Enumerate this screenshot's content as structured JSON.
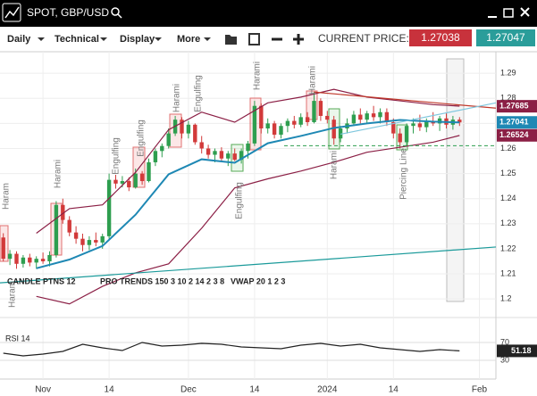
{
  "header": {
    "title": "SPOT, GBP/USD"
  },
  "toolbar": {
    "menus": [
      "Daily",
      "Technical",
      "Display",
      "More"
    ],
    "current_price_label": "CURRENT PRICE:",
    "bid": "1.27038",
    "ask": "1.27047"
  },
  "chart_data": [
    {
      "type": "candlestick",
      "up_color": "#2e9e4f",
      "down_color": "#d23a3a",
      "open": [
        1.2245,
        1.216,
        1.218,
        1.214,
        1.2165,
        1.2145,
        1.216,
        1.215,
        1.2175,
        1.2375,
        1.2315,
        1.2265,
        1.224,
        1.2215,
        1.2235,
        1.2225,
        1.225,
        1.2475,
        1.246,
        1.247,
        1.2445,
        1.25,
        1.247,
        1.2545,
        1.259,
        1.261,
        1.266,
        1.2715,
        1.266,
        1.2695,
        1.2625,
        1.26,
        1.2575,
        1.259,
        1.256,
        1.258,
        1.2555,
        1.259,
        1.262,
        1.277,
        1.268,
        1.27,
        1.2655,
        1.269,
        1.271,
        1.2695,
        1.2725,
        1.2705,
        1.279,
        1.273,
        1.2715,
        1.264,
        1.268,
        1.27,
        1.2735,
        1.2715,
        1.274,
        1.2725,
        1.2745,
        1.2705,
        1.266,
        1.2625,
        1.269,
        1.27,
        1.2685,
        1.271,
        1.27,
        1.272,
        1.2695,
        1.2715
      ],
      "high": [
        1.2262,
        1.2195,
        1.219,
        1.2175,
        1.218,
        1.217,
        1.2185,
        1.219,
        1.239,
        1.24,
        1.233,
        1.229,
        1.226,
        1.225,
        1.2265,
        1.226,
        1.25,
        1.2495,
        1.249,
        1.2485,
        1.252,
        1.251,
        1.256,
        1.26,
        1.262,
        1.268,
        1.273,
        1.2725,
        1.271,
        1.27,
        1.265,
        1.2615,
        1.26,
        1.2605,
        1.259,
        1.26,
        1.26,
        1.263,
        1.279,
        1.278,
        1.272,
        1.271,
        1.27,
        1.272,
        1.273,
        1.274,
        1.2745,
        1.2825,
        1.28,
        1.275,
        1.273,
        1.269,
        1.272,
        1.275,
        1.276,
        1.275,
        1.277,
        1.276,
        1.276,
        1.272,
        1.268,
        1.27,
        1.272,
        1.2735,
        1.272,
        1.2745,
        1.273,
        1.274,
        1.273,
        1.2725
      ],
      "low": [
        1.215,
        1.2135,
        1.212,
        1.2125,
        1.213,
        1.212,
        1.214,
        1.213,
        1.2165,
        1.23,
        1.225,
        1.222,
        1.219,
        1.2195,
        1.221,
        1.22,
        1.224,
        1.244,
        1.2445,
        1.243,
        1.244,
        1.2455,
        1.2465,
        1.253,
        1.2565,
        1.26,
        1.265,
        1.264,
        1.264,
        1.2615,
        1.258,
        1.256,
        1.2545,
        1.255,
        1.253,
        1.255,
        1.254,
        1.256,
        1.261,
        1.266,
        1.266,
        1.264,
        1.264,
        1.2665,
        1.268,
        1.2685,
        1.269,
        1.27,
        1.271,
        1.27,
        1.2615,
        1.2625,
        1.266,
        1.269,
        1.27,
        1.27,
        1.271,
        1.27,
        1.269,
        1.264,
        1.26,
        1.261,
        1.266,
        1.267,
        1.2665,
        1.269,
        1.267,
        1.268,
        1.2675,
        1.269
      ],
      "close": [
        1.216,
        1.218,
        1.214,
        1.2165,
        1.2145,
        1.216,
        1.215,
        1.2175,
        1.2375,
        1.2315,
        1.2265,
        1.224,
        1.2215,
        1.2235,
        1.2225,
        1.225,
        1.2475,
        1.246,
        1.247,
        1.2445,
        1.25,
        1.247,
        1.2545,
        1.259,
        1.261,
        1.266,
        1.2715,
        1.266,
        1.2695,
        1.2625,
        1.26,
        1.2575,
        1.259,
        1.256,
        1.258,
        1.2555,
        1.259,
        1.262,
        1.277,
        1.268,
        1.27,
        1.2655,
        1.269,
        1.271,
        1.2695,
        1.2725,
        1.2705,
        1.279,
        1.273,
        1.2715,
        1.264,
        1.268,
        1.27,
        1.2735,
        1.2715,
        1.274,
        1.2725,
        1.2745,
        1.2705,
        1.266,
        1.2625,
        1.269,
        1.27,
        1.2685,
        1.271,
        1.27,
        1.272,
        1.2695,
        1.2715,
        1.2704
      ],
      "xlim": [
        -0.5,
        74.5
      ],
      "xticks": [
        {
          "value": 6,
          "label": "Nov"
        },
        {
          "value": 16,
          "label": "14"
        },
        {
          "value": 28,
          "label": "Dec"
        },
        {
          "value": 38,
          "label": "14"
        },
        {
          "value": 49,
          "label": "2024"
        },
        {
          "value": 59,
          "label": "14"
        },
        {
          "value": 72,
          "label": "Feb"
        }
      ],
      "ylim": [
        1.194,
        1.2986
      ],
      "yticks": [
        1.2,
        1.21,
        1.22,
        1.23,
        1.24,
        1.25,
        1.26,
        1.27,
        1.28,
        1.29
      ],
      "grid": true,
      "bands": [
        {
          "color": "#8b1f45",
          "x": [
            5,
            10,
            15,
            20,
            25,
            30,
            35,
            40,
            45,
            50,
            55,
            60,
            65,
            69
          ],
          "values": [
            1.2262,
            1.236,
            1.2375,
            1.2505,
            1.2675,
            1.2745,
            1.2705,
            1.2782,
            1.2805,
            1.2836,
            1.2805,
            1.279,
            1.2775,
            1.2769
          ]
        },
        {
          "color": "#1e88b4",
          "x": [
            5,
            10,
            15,
            20,
            25,
            30,
            35,
            40,
            45,
            50,
            55,
            60,
            65,
            69
          ],
          "values": [
            1.2122,
            1.2157,
            1.2211,
            1.2336,
            1.2497,
            1.2557,
            1.2543,
            1.2621,
            1.265,
            1.2682,
            1.27,
            1.2714,
            1.2707,
            1.2704
          ]
        },
        {
          "color": "#8b1f45",
          "x": [
            5,
            10,
            15,
            20,
            25,
            30,
            35,
            40,
            45,
            50,
            55,
            60,
            65,
            69
          ],
          "values": [
            1.201,
            1.198,
            1.205,
            1.2104,
            1.214,
            1.2282,
            1.2443,
            1.2479,
            1.251,
            1.2545,
            1.2585,
            1.2605,
            1.2625,
            1.2652
          ]
        }
      ],
      "trendlines": [
        {
          "color": "#1a9a9a",
          "x": [
            -0.5,
            74.5
          ],
          "values": [
            1.2064,
            1.2207
          ]
        },
        {
          "color": "#c0392b",
          "x": [
            47,
            74.5
          ],
          "values": [
            1.2825,
            1.2761
          ]
        },
        {
          "color": "#7fc7de",
          "x": [
            51,
            74.5
          ],
          "values": [
            1.2657,
            1.2782
          ]
        }
      ],
      "level": {
        "value": 1.2611,
        "color": "#2e9e4f"
      },
      "price_labels": [
        {
          "value": 1.27685,
          "color": "#8b1f45"
        },
        {
          "value": 1.27041,
          "color": "#1e88b4"
        },
        {
          "value": 1.26524,
          "color": "#8b1f45"
        }
      ],
      "indicators": [
        "CANDLE PTNS 12",
        "PRO TRENDS 150 3 10 2 14 2 3 8",
        "VWAP 20 1 2 3"
      ],
      "annotations": [
        "Haram",
        "Harami",
        "Engulfing",
        "Engulfing",
        "Harami",
        "Engulfing",
        "Harami",
        "Engulfing",
        "Harami",
        "Harami",
        "Piercing Line",
        "Haram"
      ]
    },
    {
      "type": "line",
      "title": "RSI 14",
      "color": "#222222",
      "x": [
        0,
        3,
        6,
        9,
        12,
        15,
        18,
        21,
        24,
        27,
        30,
        33,
        36,
        39,
        42,
        45,
        48,
        51,
        54,
        57,
        60,
        63,
        66,
        69
      ],
      "values": [
        46,
        40,
        44,
        50,
        66,
        58,
        52,
        70,
        62,
        64,
        68,
        66,
        60,
        58,
        56,
        64,
        68,
        62,
        66,
        58,
        54,
        50,
        54,
        51.18
      ],
      "xlim": [
        -0.5,
        74.5
      ],
      "ylim": [
        0,
        100
      ],
      "yticks": [
        30,
        70
      ],
      "value_label": 51.18
    }
  ]
}
